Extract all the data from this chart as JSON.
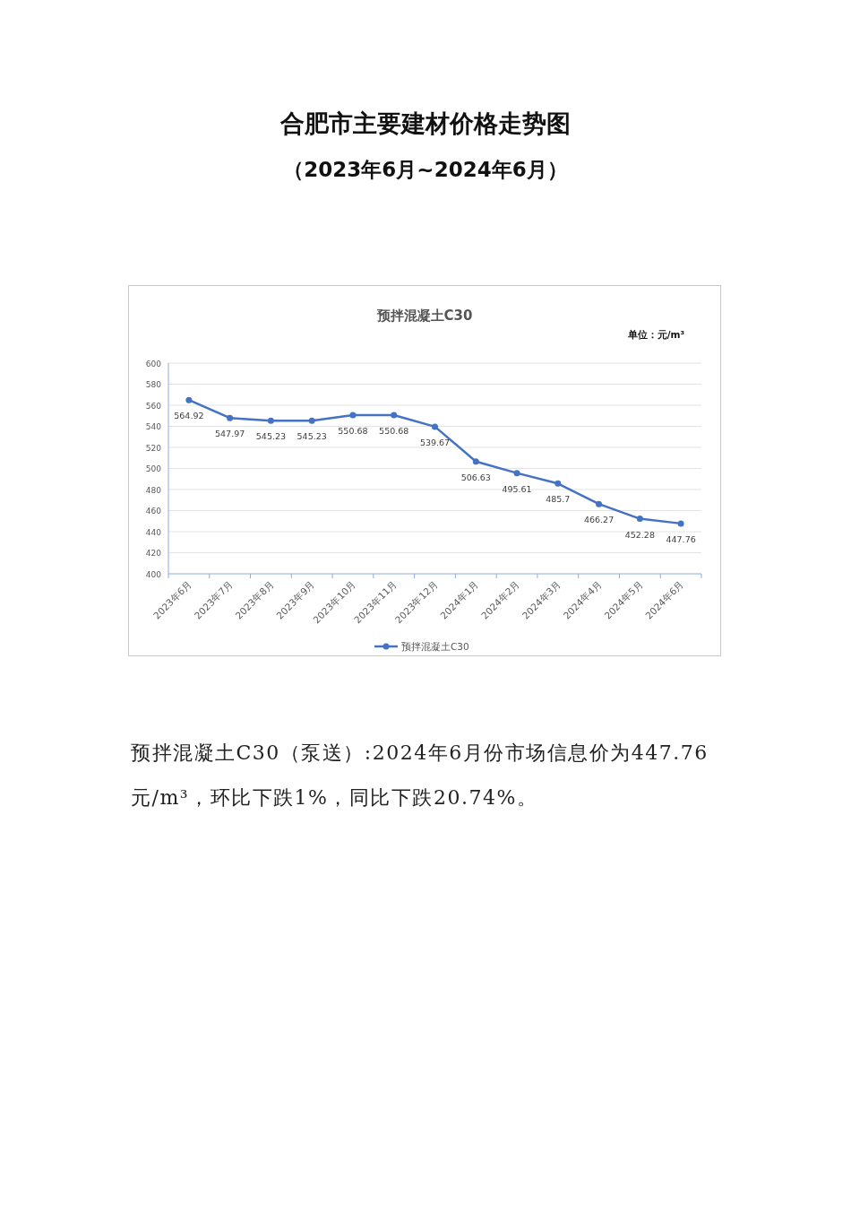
{
  "chart_data": {
    "type": "line",
    "title": "预拌混凝土C30",
    "ylabel": "单位：元/m³",
    "categories": [
      "2023年6月",
      "2023年7月",
      "2023年8月",
      "2023年9月",
      "2023年10月",
      "2023年11月",
      "2023年12月",
      "2024年1月",
      "2024年2月",
      "2024年3月",
      "2024年4月",
      "2024年5月",
      "2024年6月"
    ],
    "series": [
      {
        "name": "预拌混凝土C30",
        "color": "#4472c4",
        "values": [
          564.92,
          547.97,
          545.23,
          545.23,
          550.68,
          550.68,
          539.67,
          506.63,
          495.61,
          485.7,
          466.27,
          452.28,
          447.76
        ]
      }
    ],
    "ylim": [
      400,
      600
    ],
    "yticks": [
      400,
      420,
      440,
      460,
      480,
      500,
      520,
      540,
      560,
      580,
      600
    ],
    "grid": "y",
    "legend": "bottom",
    "marker": "circle",
    "line_style": "solid",
    "data_labels": true,
    "annotations": [
      "合肥市主要建材价格走势图",
      "（2023年6月~2024年6月）",
      "预拌混凝土C30（泵送）:2024年6月份市场信息价为447.76元/m³，环比下跌1%，同比下跌20.74%。"
    ]
  }
}
